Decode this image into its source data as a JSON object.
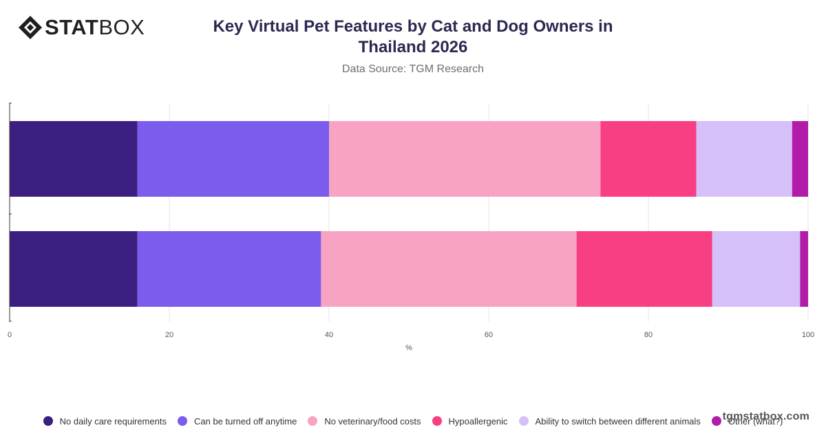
{
  "brand": {
    "logo_text_bold": "STAT",
    "logo_text_light": "BOX",
    "watermark": "tgmstatbox.com"
  },
  "chart_data": {
    "type": "bar",
    "orientation": "horizontal",
    "stacked": true,
    "title": "Key Virtual Pet Features by Cat and Dog Owners in Thailand 2026",
    "subtitle": "Data Source: TGM Research",
    "xlabel": "%",
    "ylabel": "",
    "xlim": [
      0,
      100
    ],
    "xticks": [
      0,
      20,
      40,
      60,
      80,
      100
    ],
    "grid": true,
    "legend_position": "bottom",
    "categories": [
      "",
      ""
    ],
    "series": [
      {
        "name": "No daily care requirements",
        "color": "#3b1f80",
        "values": [
          16,
          16
        ]
      },
      {
        "name": "Can be turned off anytime",
        "color": "#7b5cec",
        "values": [
          24,
          23
        ]
      },
      {
        "name": "No veterinary/food costs",
        "color": "#f8a3c3",
        "values": [
          34,
          32
        ]
      },
      {
        "name": "Hypoallergenic",
        "color": "#f83f83",
        "values": [
          12,
          17
        ]
      },
      {
        "name": "Ability to switch between different animals",
        "color": "#d5c0f9",
        "values": [
          12,
          11
        ]
      },
      {
        "name": "Other (what?)",
        "color": "#b11da8",
        "values": [
          2,
          1
        ]
      }
    ]
  }
}
